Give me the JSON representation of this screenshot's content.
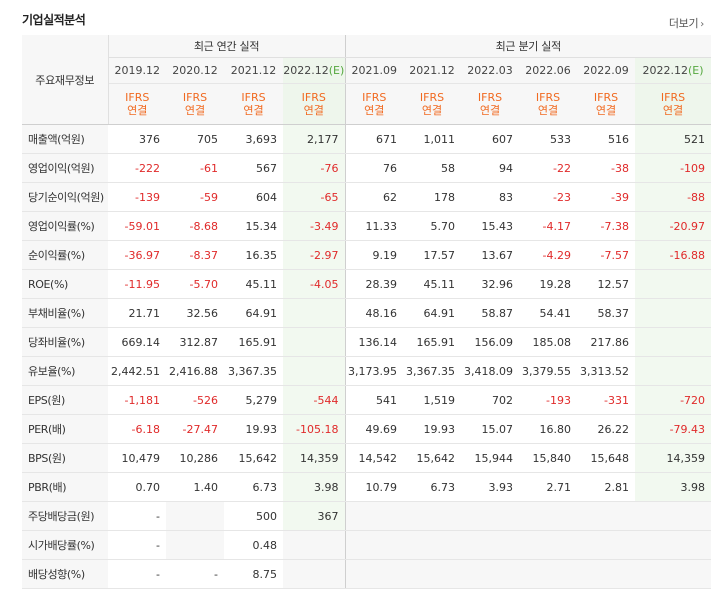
{
  "title": "기업실적분석",
  "more_label": "더보기",
  "header": {
    "row_label": "주요재무정보",
    "annual_group": "최근 연간 실적",
    "quarter_group": "최근 분기 실적",
    "ifrs_line1": "IFRS",
    "ifrs_line2": "연결",
    "annual_periods": [
      "2019.12",
      "2020.12",
      "2021.12",
      "2022.12"
    ],
    "quarter_periods": [
      "2021.09",
      "2021.12",
      "2022.03",
      "2022.06",
      "2022.09",
      "2022.12"
    ],
    "estimate_mark": "(E)"
  },
  "rows": [
    {
      "label": "매출액(억원)",
      "values": [
        "376",
        "705",
        "3,693",
        "2,177",
        "671",
        "1,011",
        "607",
        "533",
        "516",
        "521"
      ]
    },
    {
      "label": "영업이익(억원)",
      "values": [
        "-222",
        "-61",
        "567",
        "-76",
        "76",
        "58",
        "94",
        "-22",
        "-38",
        "-109"
      ]
    },
    {
      "label": "당기순이익(억원)",
      "values": [
        "-139",
        "-59",
        "604",
        "-65",
        "62",
        "178",
        "83",
        "-23",
        "-39",
        "-88"
      ]
    },
    {
      "label": "영업이익률(%)",
      "values": [
        "-59.01",
        "-8.68",
        "15.34",
        "-3.49",
        "11.33",
        "5.70",
        "15.43",
        "-4.17",
        "-7.38",
        "-20.97"
      ]
    },
    {
      "label": "순이익률(%)",
      "values": [
        "-36.97",
        "-8.37",
        "16.35",
        "-2.97",
        "9.19",
        "17.57",
        "13.67",
        "-4.29",
        "-7.57",
        "-16.88"
      ]
    },
    {
      "label": "ROE(%)",
      "values": [
        "-11.95",
        "-5.70",
        "45.11",
        "-4.05",
        "28.39",
        "45.11",
        "32.96",
        "19.28",
        "12.57",
        ""
      ]
    },
    {
      "label": "부채비율(%)",
      "values": [
        "21.71",
        "32.56",
        "64.91",
        "",
        "48.16",
        "64.91",
        "58.87",
        "54.41",
        "58.37",
        ""
      ]
    },
    {
      "label": "당좌비율(%)",
      "values": [
        "669.14",
        "312.87",
        "165.91",
        "",
        "136.14",
        "165.91",
        "156.09",
        "185.08",
        "217.86",
        ""
      ]
    },
    {
      "label": "유보율(%)",
      "values": [
        "2,442.51",
        "2,416.88",
        "3,367.35",
        "",
        "3,173.95",
        "3,367.35",
        "3,418.09",
        "3,379.55",
        "3,313.52",
        ""
      ]
    },
    {
      "label": "EPS(원)",
      "values": [
        "-1,181",
        "-526",
        "5,279",
        "-544",
        "541",
        "1,519",
        "702",
        "-193",
        "-331",
        "-720"
      ]
    },
    {
      "label": "PER(배)",
      "values": [
        "-6.18",
        "-27.47",
        "19.93",
        "-105.18",
        "49.69",
        "19.93",
        "15.07",
        "16.80",
        "26.22",
        "-79.43"
      ]
    },
    {
      "label": "BPS(원)",
      "values": [
        "10,479",
        "10,286",
        "15,642",
        "14,359",
        "14,542",
        "15,642",
        "15,944",
        "15,840",
        "15,648",
        "14,359"
      ]
    },
    {
      "label": "PBR(배)",
      "values": [
        "0.70",
        "1.40",
        "6.73",
        "3.98",
        "10.79",
        "6.73",
        "3.93",
        "2.71",
        "2.81",
        "3.98"
      ]
    },
    {
      "label": "주당배당금(원)",
      "values": [
        "-",
        "",
        "500",
        "367",
        "",
        "",
        "",
        "",
        "",
        ""
      ]
    },
    {
      "label": "시가배당률(%)",
      "values": [
        "-",
        "",
        "0.48",
        "",
        "",
        "",
        "",
        "",
        "",
        ""
      ]
    },
    {
      "label": "배당성향(%)",
      "values": [
        "-",
        "-",
        "8.75",
        "",
        "",
        "",
        "",
        "",
        "",
        ""
      ]
    }
  ],
  "colors": {
    "negative": "#e02a2a",
    "ifrs": "#f16a21",
    "estimate_mark": "#55a83f",
    "estimate_bg": "#f2f9f0"
  }
}
